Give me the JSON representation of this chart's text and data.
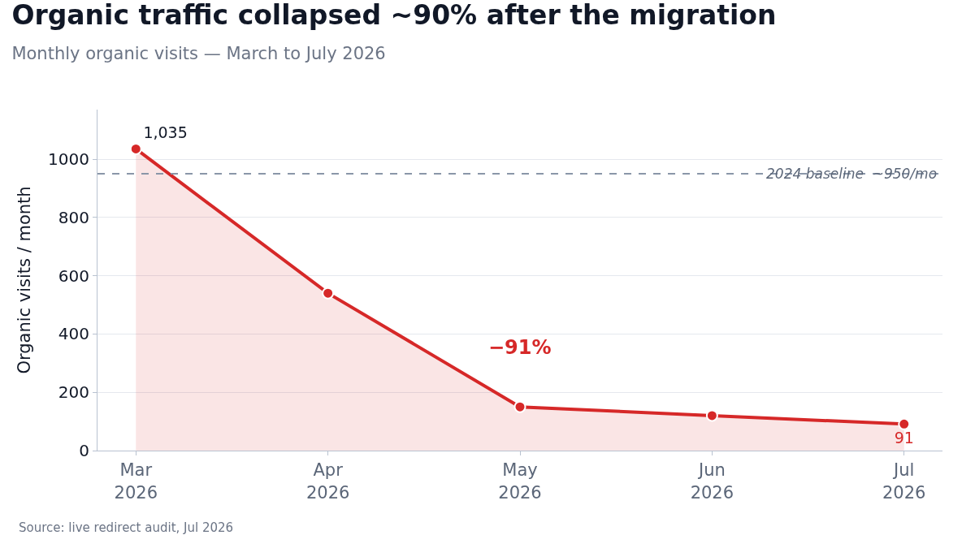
{
  "chart_data": {
    "type": "area",
    "title": "Organic traffic collapsed ~90% after the migration",
    "subtitle": "Monthly organic visits — March to July 2026",
    "ylabel": "Organic visits / month",
    "categories": [
      "Mar 2026",
      "Apr 2026",
      "May 2026",
      "Jun 2026",
      "Jul 2026"
    ],
    "series": [
      {
        "color": "#d62828",
        "values": [
          1035,
          540,
          150,
          120,
          91
        ],
        "value_labels": [
          "1,035",
          null,
          null,
          null,
          "91"
        ]
      }
    ],
    "ylim": [
      0,
      1170
    ],
    "yticks": [
      0,
      200,
      400,
      600,
      800,
      1000
    ],
    "grid": "y",
    "marker": "circle",
    "line_style": "solid",
    "ref_lines": [
      {
        "axis": "y",
        "value": 950,
        "label": "2024 baseline  ~950/mo",
        "color": "#8a96a8",
        "line_style": "dashed"
      }
    ],
    "annotations": [
      "−91%",
      "Source: live redirect audit, Jul 2026"
    ]
  }
}
